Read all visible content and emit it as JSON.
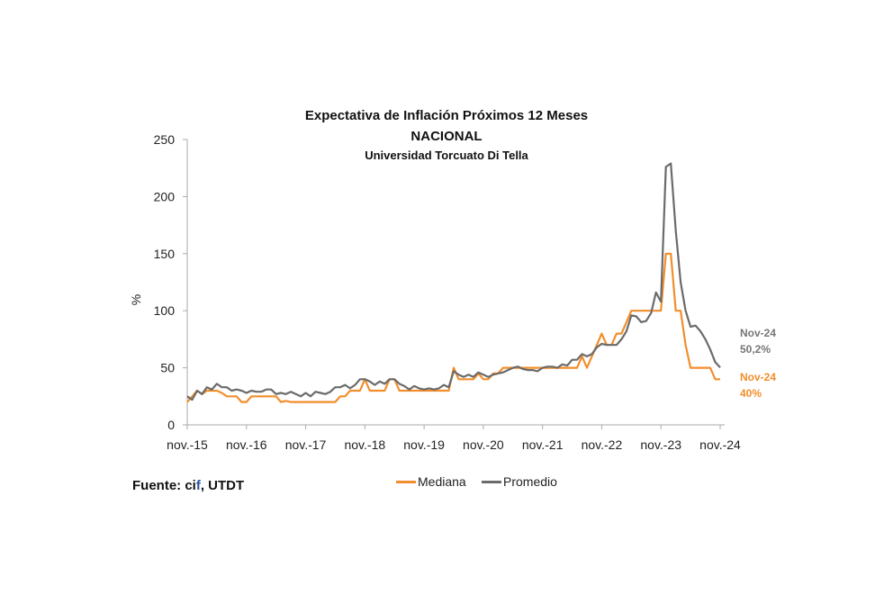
{
  "chart_data": {
    "type": "line",
    "title": "Expectativa de Inflación Próximos 12 Meses",
    "subtitle": "NACIONAL",
    "subtitle2": "Universidad Torcuato Di Tella",
    "ylabel": "%",
    "xlabel": "",
    "ylim": [
      0,
      250
    ],
    "yticks": [
      0,
      50,
      100,
      150,
      200,
      250
    ],
    "x_start": "nov.-15",
    "x_frequency": "monthly",
    "xtick_labels": [
      "nov.-15",
      "nov.-16",
      "nov.-17",
      "nov.-18",
      "nov.-19",
      "nov.-20",
      "nov.-21",
      "nov.-22",
      "nov.-23",
      "nov.-24"
    ],
    "grid": false,
    "legend_position": "bottom",
    "series": [
      {
        "name": "Mediana",
        "color": "#f28e2b",
        "values": [
          20,
          25,
          30,
          27,
          30,
          30,
          30,
          28,
          25,
          25,
          25,
          20,
          20,
          25,
          25,
          25,
          25,
          25,
          25,
          20,
          21,
          20,
          20,
          20,
          20,
          20,
          20,
          20,
          20,
          20,
          20,
          25,
          25,
          30,
          30,
          30,
          40,
          30,
          30,
          30,
          30,
          40,
          40,
          30,
          30,
          30,
          30,
          30,
          30,
          30,
          30,
          30,
          30,
          30,
          50,
          40,
          40,
          40,
          40,
          45,
          40,
          40,
          45,
          45,
          50,
          50,
          50,
          50,
          50,
          50,
          50,
          50,
          50,
          50,
          50,
          50,
          50,
          50,
          50,
          50,
          60,
          50,
          60,
          70,
          80,
          70,
          70,
          80,
          80,
          90,
          100,
          100,
          100,
          100,
          100,
          100,
          100,
          150,
          150,
          100,
          100,
          70,
          50,
          50,
          50,
          50,
          50,
          40,
          40
        ]
      },
      {
        "name": "Promedio",
        "color": "#6b6b6b",
        "values": [
          25,
          22,
          30,
          27,
          33,
          31,
          36,
          33,
          33,
          30,
          31,
          30,
          28,
          30,
          29,
          29,
          31,
          31,
          27,
          28,
          27,
          29,
          27,
          25,
          28,
          25,
          29,
          28,
          27,
          29,
          33,
          33,
          35,
          32,
          35,
          40,
          40,
          38,
          35,
          38,
          36,
          40,
          40,
          36,
          34,
          31,
          34,
          32,
          31,
          32,
          31,
          32,
          35,
          33,
          47,
          44,
          42,
          44,
          42,
          46,
          44,
          42,
          44,
          45,
          46,
          48,
          50,
          51,
          49,
          48,
          48,
          47,
          50,
          51,
          51,
          50,
          53,
          52,
          57,
          57,
          62,
          60,
          62,
          68,
          71,
          70,
          70,
          70,
          75,
          82,
          96,
          95,
          90,
          91,
          98,
          116,
          108,
          226,
          229,
          170,
          125,
          100,
          86,
          87,
          82,
          75,
          66,
          55,
          50.2
        ]
      }
    ],
    "annotations": [
      {
        "series": "Promedio",
        "line1": "Nov-24",
        "line2": "50,2%"
      },
      {
        "series": "Mediana",
        "line1": "Nov-24",
        "line2": "40%"
      }
    ]
  },
  "source": {
    "prefix": "Fuente: ci",
    "highlight": "f",
    "suffix": ", UTDT"
  }
}
